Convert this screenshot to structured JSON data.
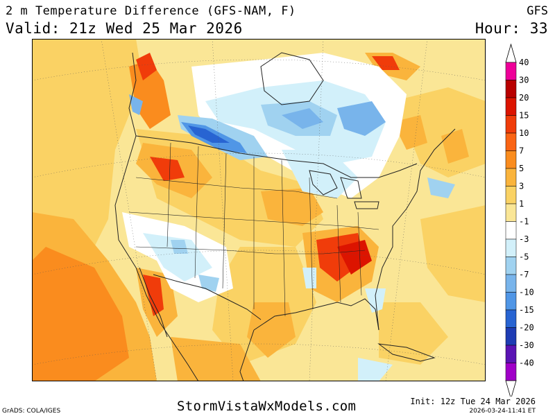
{
  "header": {
    "title": "2 m Temperature Difference (GFS-NAM, F)",
    "valid": "Valid: 21z Wed 25 Mar 2026",
    "model": "GFS",
    "hour": "Hour: 33"
  },
  "footer": {
    "credit": "GrADS: COLA/IGES",
    "site": "StormVistaWxModels.com",
    "init": "Init: 12z Tue 24 Mar 2026",
    "generated": "2026-03-24-11:41 ET"
  },
  "legend": {
    "labels": [
      "40",
      "30",
      "20",
      "15",
      "10",
      "7",
      "5",
      "3",
      "1",
      "-1",
      "-3",
      "-5",
      "-7",
      "-10",
      "-15",
      "-20",
      "-30",
      "-40"
    ],
    "colors": [
      "#ee0099",
      "#b90000",
      "#dc1400",
      "#f03c0a",
      "#fa6414",
      "#fa8c1e",
      "#fab43c",
      "#fad264",
      "#fae696",
      "#ffffff",
      "#d2f0fa",
      "#a0d2f0",
      "#78b4eb",
      "#5096e6",
      "#2864d2",
      "#1e3cb4",
      "#5a14b4",
      "#a000c8"
    ]
  },
  "map_colors": {
    "background": "#fae696",
    "warm": "#fad264",
    "warmer": "#fab43c",
    "hot": "#fa8c1e",
    "hotter": "#f03c0a",
    "cool": "#ffffff",
    "cold": "#d2f0fa",
    "colder": "#a0d2f0",
    "coldest": "#5096e6",
    "deep": "#2864d2",
    "lines": "#222222"
  }
}
